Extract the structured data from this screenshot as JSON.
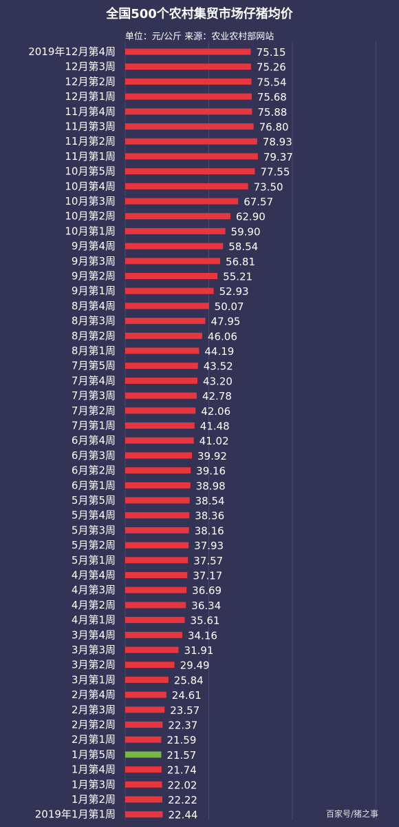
{
  "header": {
    "title": "全国500个农村集贸市场仔猪均价",
    "subtitle": "单位：元/公斤 来源：农业农村部网站"
  },
  "watermark": "百家号/猪之事",
  "colors": {
    "background": "#333355",
    "bar": "#e8363f",
    "bar_highlight": "#7ab648",
    "gridline": "#4a4a6e",
    "text": "#ffffff"
  },
  "chart_data": {
    "type": "bar",
    "orientation": "horizontal",
    "title": "全国500个农村集贸市场仔猪均价",
    "subtitle": "单位：元/公斤 来源：农业农村部网站",
    "xlim": [
      0,
      100
    ],
    "grid": true,
    "highlight_category": "1月第5周",
    "categories": [
      "2019年12月第4周",
      "12月第3周",
      "12月第2周",
      "12月第1周",
      "11月第4周",
      "11月第3周",
      "11月第2周",
      "11月第1周",
      "10月第5周",
      "10月第4周",
      "10月第3周",
      "10月第2周",
      "10月第1周",
      "9月第4周",
      "9月第3周",
      "9月第2周",
      "9月第1周",
      "8月第4周",
      "8月第3周",
      "8月第2周",
      "8月第1周",
      "7月第5周",
      "7月第4周",
      "7月第3周",
      "7月第2周",
      "7月第1周",
      "6月第4周",
      "6月第3周",
      "6月第2周",
      "6月第1周",
      "5月第5周",
      "5月第4周",
      "5月第3周",
      "5月第2周",
      "5月第1周",
      "4月第4周",
      "4月第3周",
      "4月第2周",
      "4月第1周",
      "3月第4周",
      "3月第3周",
      "3月第2周",
      "3月第1周",
      "2月第4周",
      "2月第3周",
      "2月第2周",
      "2月第1周",
      "1月第5周",
      "1月第4周",
      "1月第3周",
      "1月第2周",
      "2019年1月第1周"
    ],
    "values": [
      75.15,
      75.26,
      75.54,
      75.68,
      75.88,
      76.8,
      78.93,
      79.37,
      77.55,
      73.5,
      67.57,
      62.9,
      59.9,
      58.54,
      56.81,
      55.21,
      52.93,
      50.07,
      47.95,
      46.06,
      44.19,
      43.52,
      43.2,
      42.78,
      42.06,
      41.48,
      41.02,
      39.92,
      39.16,
      38.98,
      38.54,
      38.36,
      38.16,
      37.93,
      37.57,
      37.17,
      36.69,
      36.34,
      35.61,
      34.16,
      31.91,
      29.49,
      25.84,
      24.61,
      23.57,
      22.37,
      21.59,
      21.57,
      21.74,
      22.02,
      22.22,
      22.44
    ],
    "value_labels": [
      "75.15",
      "75.26",
      "75.54",
      "75.68",
      "75.88",
      "76.80",
      "78.93",
      "79.37",
      "77.55",
      "73.50",
      "67.57",
      "62.90",
      "59.90",
      "58.54",
      "56.81",
      "55.21",
      "52.93",
      "50.07",
      "47.95",
      "46.06",
      "44.19",
      "43.52",
      "43.20",
      "42.78",
      "42.06",
      "41.48",
      "41.02",
      "39.92",
      "39.16",
      "38.98",
      "38.54",
      "38.36",
      "38.16",
      "37.93",
      "37.57",
      "37.17",
      "36.69",
      "36.34",
      "35.61",
      "34.16",
      "31.91",
      "29.49",
      "25.84",
      "24.61",
      "23.57",
      "22.37",
      "21.59",
      "21.57",
      "21.74",
      "22.02",
      "22.22",
      "22.44"
    ]
  }
}
